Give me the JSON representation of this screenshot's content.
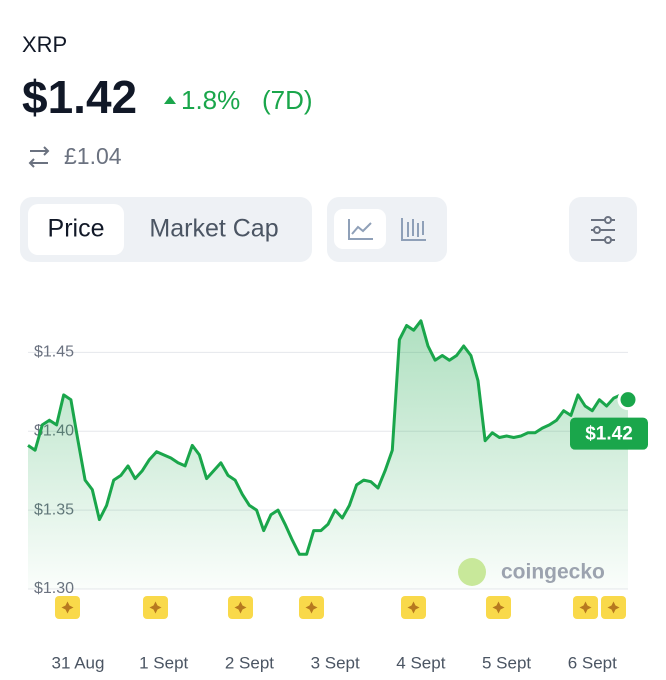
{
  "header": {
    "symbol": "XRP",
    "price": "$1.42",
    "change": "1.8%",
    "period": "(7D)",
    "alt_price": "£1.04"
  },
  "tabs": [
    "Price",
    "Market Cap"
  ],
  "watermark": "coingecko",
  "chart_data": {
    "type": "line",
    "color": "#1aa64b",
    "grid": true,
    "categories": [
      null,
      null,
      null,
      null,
      null,
      null,
      null,
      "31 Aug",
      null,
      null,
      null,
      null,
      null,
      null,
      null,
      null,
      null,
      null,
      null,
      "1 Sept",
      null,
      null,
      null,
      null,
      null,
      null,
      null,
      null,
      null,
      null,
      null,
      "2 Sept",
      null,
      null,
      null,
      null,
      null,
      null,
      null,
      null,
      null,
      null,
      null,
      "3 Sept",
      null,
      null,
      null,
      null,
      null,
      null,
      null,
      null,
      null,
      null,
      null,
      "4 Sept",
      null,
      null,
      null,
      null,
      null,
      null,
      null,
      null,
      null,
      null,
      null,
      "5 Sept",
      null,
      null,
      null,
      null,
      null,
      null,
      null,
      null,
      null,
      null,
      null,
      "6 Sept",
      null,
      null,
      null,
      null,
      null
    ],
    "values": [
      1.391,
      1.388,
      1.404,
      1.407,
      1.404,
      1.423,
      1.42,
      1.394,
      1.369,
      1.363,
      1.344,
      1.353,
      1.369,
      1.372,
      1.378,
      1.37,
      1.375,
      1.382,
      1.387,
      1.385,
      1.383,
      1.38,
      1.378,
      1.391,
      1.385,
      1.37,
      1.375,
      1.38,
      1.372,
      1.369,
      1.36,
      1.353,
      1.35,
      1.337,
      1.347,
      1.35,
      1.341,
      1.331,
      1.322,
      1.322,
      1.337,
      1.337,
      1.341,
      1.35,
      1.345,
      1.353,
      1.366,
      1.369,
      1.368,
      1.364,
      1.375,
      1.388,
      1.458,
      1.467,
      1.464,
      1.47,
      1.454,
      1.445,
      1.448,
      1.445,
      1.448,
      1.454,
      1.448,
      1.432,
      1.394,
      1.399,
      1.396,
      1.397,
      1.396,
      1.397,
      1.399,
      1.399,
      1.402,
      1.404,
      1.407,
      1.413,
      1.41,
      1.423,
      1.416,
      1.413,
      1.42,
      1.416,
      1.421,
      1.423,
      1.42
    ],
    "end_label": "$1.42",
    "ylim": [
      1.3,
      1.48
    ],
    "yticks": [
      {
        "value": 1.3,
        "label": "$1.30"
      },
      {
        "value": 1.35,
        "label": "$1.35"
      },
      {
        "value": 1.4,
        "label": "$1.40"
      },
      {
        "value": 1.45,
        "label": "$1.45"
      }
    ]
  }
}
